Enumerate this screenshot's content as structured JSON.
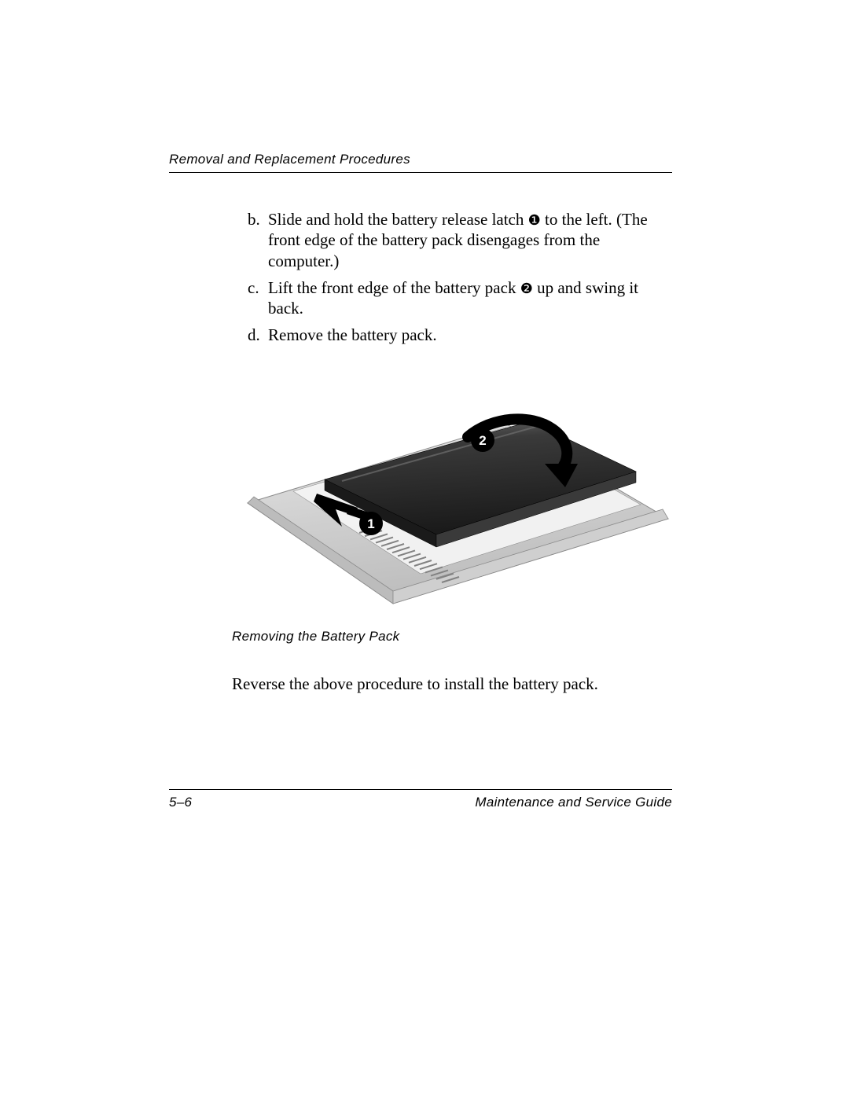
{
  "header": {
    "title": "Removal and Replacement Procedures"
  },
  "steps": [
    {
      "marker": "b.",
      "text_before": "Slide and hold the battery release latch ",
      "ref": "1",
      "text_after": " to the left. (The front edge of the battery pack disengages from the computer.)"
    },
    {
      "marker": "c.",
      "text_before": "Lift the front edge of the battery pack ",
      "ref": "2",
      "text_after": " up and swing it back."
    },
    {
      "marker": "d.",
      "text_before": "Remove the battery pack.",
      "ref": "",
      "text_after": ""
    }
  ],
  "figure": {
    "caption": "Removing the Battery Pack",
    "callouts": {
      "one": "1",
      "two": "2"
    },
    "colors": {
      "body_light": "#e8e8e8",
      "body_mid": "#cfcfcf",
      "body_dark": "#bcbcbc",
      "edge": "#8a8a8a",
      "slot": "#f6f6f6",
      "battery_top": "#3a3a3a",
      "battery_side": "#1a1a1a",
      "battery_hi": "#6f6f6f",
      "vent": "#828282",
      "callout_fill": "#000000",
      "callout_text": "#ffffff",
      "arrow": "#000000"
    }
  },
  "closing": "Reverse the above procedure to install the battery pack.",
  "footer": {
    "page": "5–6",
    "doc": "Maintenance and Service Guide"
  }
}
